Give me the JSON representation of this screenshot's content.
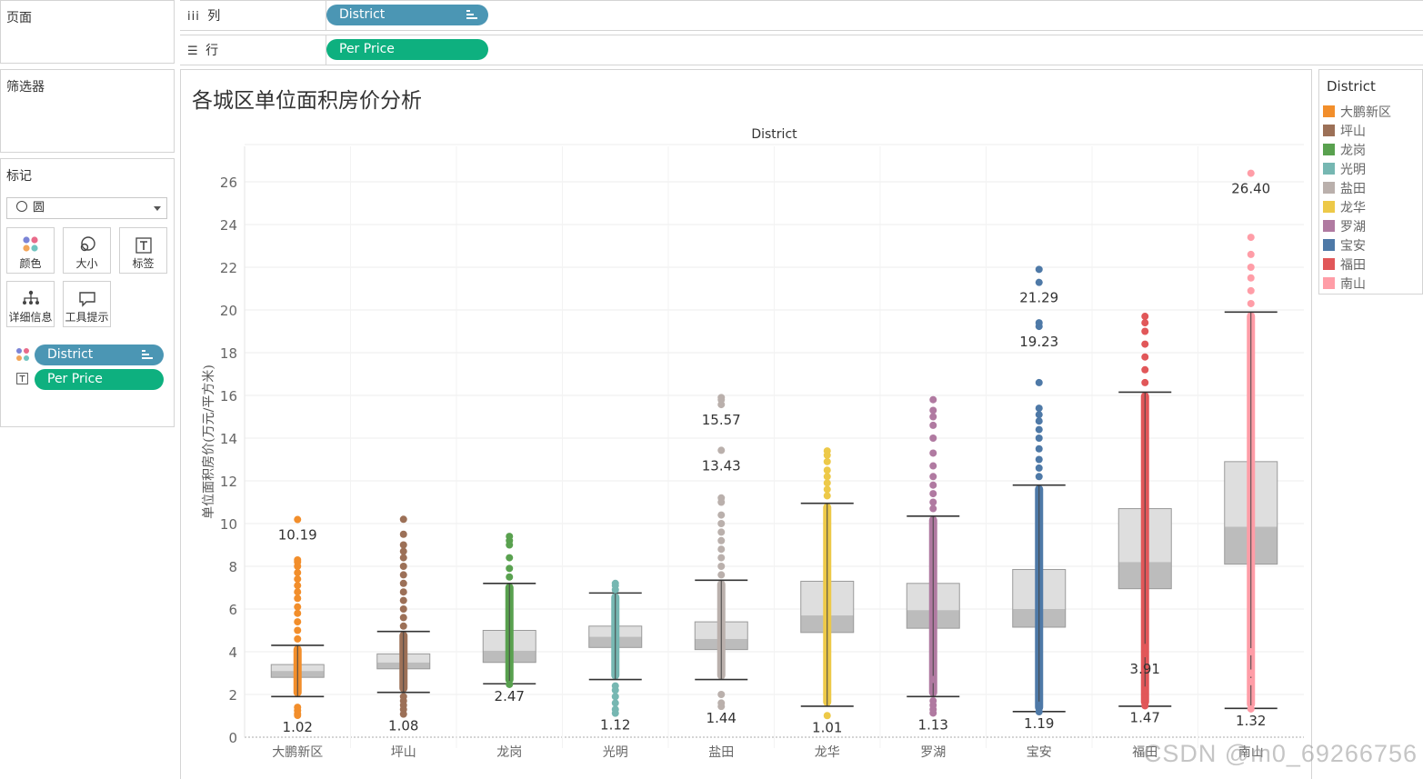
{
  "sidebar": {
    "pages_label": "页面",
    "filters_label": "筛选器",
    "marks_label": "标记",
    "mark_type": "圆",
    "buttons": {
      "color": "颜色",
      "size": "大小",
      "label": "标签",
      "detail": "详细信息",
      "tooltip": "工具提示"
    },
    "mark_pills": {
      "color_field": "District",
      "label_field": "Per Price"
    }
  },
  "shelves": {
    "columns_label": "列",
    "columns_pill": "District",
    "rows_label": "行",
    "rows_pill": "Per Price"
  },
  "viz": {
    "title": "各城区单位面积房价分析"
  },
  "legend": {
    "title": "District",
    "items": [
      {
        "label": "大鹏新区",
        "color": "#f28e2b"
      },
      {
        "label": "坪山",
        "color": "#9c7057"
      },
      {
        "label": "龙岗",
        "color": "#59a14f"
      },
      {
        "label": "光明",
        "color": "#76b7b2"
      },
      {
        "label": "盐田",
        "color": "#bab0ac"
      },
      {
        "label": "龙华",
        "color": "#edc948"
      },
      {
        "label": "罗湖",
        "color": "#b07aa1"
      },
      {
        "label": "宝安",
        "color": "#4e79a7"
      },
      {
        "label": "福田",
        "color": "#e15759"
      },
      {
        "label": "南山",
        "color": "#ff9da7"
      }
    ]
  },
  "watermark": "CSDN @m0_69266756",
  "chart_data": {
    "type": "box",
    "header": "District",
    "ylabel": "单位面积房价(万元/平方米)",
    "ylim": [
      0,
      27
    ],
    "yticks": [
      0,
      2,
      4,
      6,
      8,
      10,
      12,
      14,
      16,
      18,
      20,
      22,
      24,
      26
    ],
    "categories": [
      "大鹏新区",
      "坪山",
      "龙岗",
      "光明",
      "盐田",
      "龙华",
      "罗湖",
      "宝安",
      "福田",
      "南山"
    ],
    "colors": [
      "#f28e2b",
      "#9c7057",
      "#59a14f",
      "#76b7b2",
      "#bab0ac",
      "#edc948",
      "#b07aa1",
      "#4e79a7",
      "#e15759",
      "#ff9da7"
    ],
    "boxes": [
      {
        "whisker_low": 1.9,
        "q1": 2.8,
        "median": 3.1,
        "q3": 3.4,
        "whisker_high": 4.3
      },
      {
        "whisker_low": 2.1,
        "q1": 3.2,
        "median": 3.5,
        "q3": 3.9,
        "whisker_high": 4.95
      },
      {
        "whisker_low": 2.5,
        "q1": 3.5,
        "median": 4.05,
        "q3": 5.0,
        "whisker_high": 7.2
      },
      {
        "whisker_low": 2.7,
        "q1": 4.2,
        "median": 4.7,
        "q3": 5.2,
        "whisker_high": 6.75
      },
      {
        "whisker_low": 2.7,
        "q1": 4.1,
        "median": 4.6,
        "q3": 5.4,
        "whisker_high": 7.35
      },
      {
        "whisker_low": 1.45,
        "q1": 4.9,
        "median": 5.7,
        "q3": 7.3,
        "whisker_high": 10.95
      },
      {
        "whisker_low": 1.9,
        "q1": 5.1,
        "median": 5.95,
        "q3": 7.2,
        "whisker_high": 10.35
      },
      {
        "whisker_low": 1.2,
        "q1": 5.15,
        "median": 6.0,
        "q3": 7.85,
        "whisker_high": 11.8
      },
      {
        "whisker_low": 1.45,
        "q1": 6.95,
        "median": 8.2,
        "q3": 10.7,
        "whisker_high": 16.15
      },
      {
        "whisker_low": 1.35,
        "q1": 8.1,
        "median": 9.85,
        "q3": 12.9,
        "whisker_high": 19.9
      }
    ],
    "point_ranges": [
      [
        [
          1.9,
          4.3
        ]
      ],
      [
        [
          2.1,
          4.95
        ]
      ],
      [
        [
          2.5,
          7.2
        ]
      ],
      [
        [
          2.7,
          6.75
        ]
      ],
      [
        [
          2.7,
          7.35
        ]
      ],
      [
        [
          1.45,
          10.95
        ]
      ],
      [
        [
          1.9,
          10.35
        ]
      ],
      [
        [
          1.2,
          11.8
        ]
      ],
      [
        [
          1.45,
          16.15
        ]
      ],
      [
        [
          1.35,
          19.9
        ]
      ]
    ],
    "outliers": [
      [
        1.02,
        1.1,
        1.25,
        1.4,
        4.6,
        5.0,
        5.4,
        5.8,
        6.1,
        6.5,
        6.8,
        7.1,
        7.4,
        7.7,
        8.0,
        8.2,
        8.3,
        10.19
      ],
      [
        1.08,
        1.3,
        1.5,
        1.7,
        1.9,
        5.2,
        5.6,
        6.0,
        6.4,
        6.8,
        7.2,
        7.6,
        8.0,
        8.4,
        8.7,
        9.0,
        9.5,
        10.2
      ],
      [
        2.47,
        7.5,
        7.9,
        8.4,
        9.0,
        9.2,
        9.4
      ],
      [
        1.12,
        1.3,
        1.6,
        1.9,
        2.2,
        2.4,
        6.9,
        7.1,
        7.2
      ],
      [
        1.44,
        1.6,
        2.0,
        7.6,
        8.0,
        8.4,
        8.8,
        9.2,
        9.6,
        10.0,
        10.4,
        11.0,
        11.2,
        13.43,
        15.57,
        15.8,
        15.9
      ],
      [
        1.01,
        11.3,
        11.6,
        11.9,
        12.2,
        12.5,
        12.9,
        13.2,
        13.4
      ],
      [
        1.13,
        1.3,
        1.5,
        1.7,
        2.7,
        10.7,
        11.0,
        11.4,
        11.8,
        12.2,
        12.7,
        13.3,
        14.0,
        14.6,
        15.0,
        15.3,
        15.8
      ],
      [
        1.19,
        1.5,
        12.2,
        12.6,
        13.0,
        13.5,
        14.0,
        14.4,
        14.8,
        15.1,
        15.4,
        16.6,
        19.23,
        19.4,
        21.29,
        21.9
      ],
      [
        1.47,
        1.8,
        2.0,
        2.2,
        3.91,
        4.2,
        16.6,
        17.2,
        17.8,
        18.4,
        19.0,
        19.4,
        19.7
      ],
      [
        1.32,
        2.6,
        3.0,
        4.0,
        20.3,
        20.9,
        21.5,
        22.0,
        22.6,
        23.4,
        26.4
      ]
    ],
    "labels": [
      [
        {
          "value": 1.02,
          "text": "1.02"
        },
        {
          "value": 10.19,
          "text": "10.19"
        }
      ],
      [
        {
          "value": 1.08,
          "text": "1.08"
        }
      ],
      [
        {
          "value": 2.47,
          "text": "2.47"
        }
      ],
      [
        {
          "value": 1.12,
          "text": "1.12"
        }
      ],
      [
        {
          "value": 1.44,
          "text": "1.44"
        },
        {
          "value": 13.43,
          "text": "13.43"
        },
        {
          "value": 15.57,
          "text": "15.57"
        }
      ],
      [
        {
          "value": 1.01,
          "text": "1.01"
        }
      ],
      [
        {
          "value": 1.13,
          "text": "1.13"
        }
      ],
      [
        {
          "value": 1.19,
          "text": "1.19"
        },
        {
          "value": 19.23,
          "text": "19.23"
        },
        {
          "value": 21.29,
          "text": "21.29"
        }
      ],
      [
        {
          "value": 1.47,
          "text": "1.47"
        },
        {
          "value": 3.91,
          "text": "3.91"
        }
      ],
      [
        {
          "value": 1.32,
          "text": "1.32"
        },
        {
          "value": 26.4,
          "text": "26.40"
        }
      ]
    ]
  }
}
